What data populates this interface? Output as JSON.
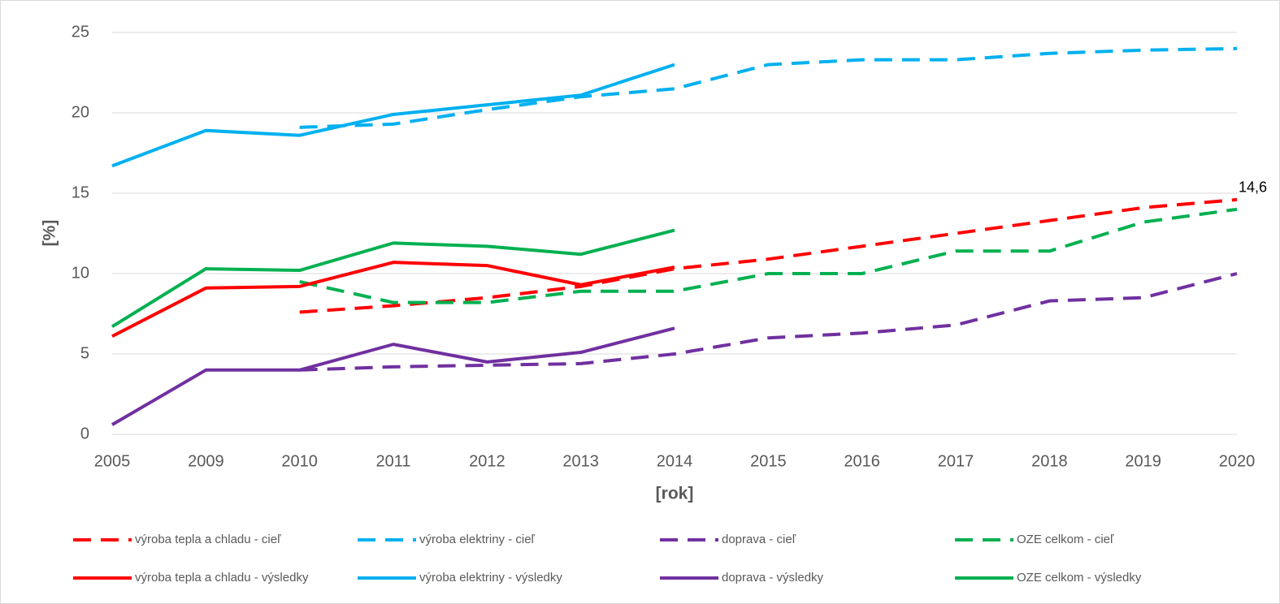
{
  "chart_data": {
    "type": "line",
    "x_label": "[rok]",
    "y_label": "[%]",
    "categories": [
      "2005",
      "2009",
      "2010",
      "2011",
      "2012",
      "2013",
      "2014",
      "2015",
      "2016",
      "2017",
      "2018",
      "2019",
      "2020"
    ],
    "ylim": [
      0,
      25
    ],
    "yticks": [
      0,
      5,
      10,
      15,
      20,
      25
    ],
    "grid": true,
    "series": [
      {
        "name": "výroba tepla a chladu - cieľ",
        "color": "#ff0000",
        "dashed": true,
        "values": [
          null,
          null,
          7.6,
          8.0,
          8.5,
          9.2,
          10.3,
          10.9,
          11.7,
          12.5,
          13.3,
          14.1,
          14.6
        ],
        "value_labels": [
          null,
          null,
          null,
          null,
          null,
          null,
          null,
          null,
          null,
          null,
          null,
          null,
          "14,6"
        ]
      },
      {
        "name": "výroba elektriny - cieľ",
        "color": "#00b0f0",
        "dashed": true,
        "values": [
          null,
          null,
          19.1,
          19.3,
          20.2,
          21.0,
          21.5,
          23.0,
          23.3,
          23.3,
          23.7,
          23.9,
          24.0
        ]
      },
      {
        "name": "doprava - cieľ",
        "color": "#7030a0",
        "dashed": true,
        "values": [
          null,
          null,
          4.0,
          4.2,
          4.3,
          4.4,
          5.0,
          6.0,
          6.3,
          6.8,
          8.3,
          8.5,
          10.0
        ]
      },
      {
        "name": "OZE celkom - cieľ",
        "color": "#00b050",
        "dashed": true,
        "values": [
          null,
          null,
          9.5,
          8.2,
          8.2,
          8.9,
          8.9,
          10.0,
          10.0,
          11.4,
          11.4,
          13.2,
          14.0
        ]
      },
      {
        "name": "výroba tepla a chladu - výsledky",
        "color": "#ff0000",
        "dashed": false,
        "values": [
          6.1,
          9.1,
          9.2,
          10.7,
          10.5,
          9.3,
          10.4,
          null,
          null,
          null,
          null,
          null,
          null
        ]
      },
      {
        "name": "výroba elektriny - výsledky",
        "color": "#00b0f0",
        "dashed": false,
        "values": [
          16.7,
          18.9,
          18.6,
          19.9,
          20.5,
          21.1,
          23.0,
          null,
          null,
          null,
          null,
          null,
          null
        ]
      },
      {
        "name": "doprava - výsledky",
        "color": "#7030a0",
        "dashed": false,
        "values": [
          0.6,
          4.0,
          4.0,
          5.6,
          4.5,
          5.1,
          6.6,
          null,
          null,
          null,
          null,
          null,
          null
        ]
      },
      {
        "name": "OZE celkom - výsledky",
        "color": "#00b050",
        "dashed": false,
        "values": [
          6.7,
          10.3,
          10.2,
          11.9,
          11.7,
          11.2,
          12.7,
          null,
          null,
          null,
          null,
          null,
          null
        ]
      }
    ]
  }
}
